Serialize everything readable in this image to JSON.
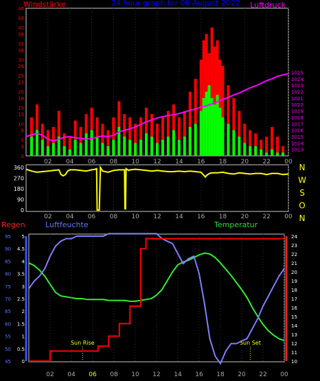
{
  "colors": {
    "wind_avg": "#00ff00",
    "wind_gust": "#ff0000",
    "pressure": "#ff00ff",
    "direction": "#ffff00",
    "humidity": "#8080ff",
    "temperature": "#33ee33",
    "rain": "#ff0000",
    "title": "#0000ff",
    "compass": "#ffff00",
    "humidity_label": "#5b7bff",
    "temp_label": "#33dd33",
    "rain_label": "#ff2020",
    "axis_tick": "#aaaaaa",
    "gauge_left": "#3355ff",
    "gauge_right": "#ff2020",
    "sun_marker": "#ffff00"
  },
  "chart_data": [
    {
      "type": "bar",
      "title": "24 hour graph for 06 August 2022",
      "xlabel": "",
      "ylabel": "Windstärke",
      "y2label": "Luftdruck",
      "x_ticks": [
        "02",
        "04",
        "06",
        "08",
        "10",
        "12",
        "14",
        "16",
        "18",
        "20",
        "22",
        "00"
      ],
      "ylim": [
        0,
        46
      ],
      "y_ticks": [
        0,
        3,
        5,
        8,
        10,
        13,
        15,
        18,
        20,
        23,
        25,
        28,
        30,
        33,
        35,
        38,
        40,
        43,
        46
      ],
      "y2lim": [
        1012,
        1035
      ],
      "y2_ticks": [
        1013,
        1014,
        1015,
        1016,
        1017,
        1018,
        1019,
        1020,
        1021,
        1022,
        1023,
        1024,
        1025
      ],
      "series": [
        {
          "name": "Windstärke",
          "kind": "bars",
          "x": [
            0.5,
            1,
            1.5,
            2,
            2.5,
            3,
            3.5,
            4,
            4.5,
            5,
            5.5,
            6,
            6.5,
            7,
            7.5,
            8,
            8.5,
            9,
            9.5,
            10,
            10.5,
            11,
            11.5,
            12,
            12.5,
            13,
            13.5,
            14,
            14.5,
            15,
            15.5,
            16,
            16.25,
            16.5,
            16.75,
            17,
            17.25,
            17.5,
            17.75,
            18,
            18.5,
            19,
            19.5,
            20,
            20.5,
            21,
            21.5,
            22,
            22.5,
            23,
            23.5
          ],
          "values": [
            6,
            8,
            5,
            3,
            4,
            6,
            3,
            2,
            5,
            4,
            7,
            8,
            6,
            4,
            3,
            5,
            9,
            6,
            5,
            4,
            5,
            7,
            6,
            4,
            5,
            6,
            8,
            5,
            6,
            9,
            10,
            14,
            18,
            20,
            22,
            18,
            16,
            19,
            15,
            12,
            10,
            8,
            6,
            4,
            3,
            3,
            2,
            1,
            2,
            1,
            1
          ]
        },
        {
          "name": "Böen",
          "kind": "bars",
          "x": [
            0.5,
            1,
            1.5,
            2,
            2.5,
            3,
            3.5,
            4,
            4.5,
            5,
            5.5,
            6,
            6.5,
            7,
            7.5,
            8,
            8.5,
            9,
            9.5,
            10,
            10.5,
            11,
            11.5,
            12,
            12.5,
            13,
            13.5,
            14,
            14.5,
            15,
            15.5,
            16,
            16.25,
            16.5,
            16.75,
            17,
            17.25,
            17.5,
            17.75,
            18,
            18.5,
            19,
            19.5,
            20,
            20.5,
            21,
            21.5,
            22,
            22.5,
            23,
            23.5
          ],
          "values": [
            12,
            16,
            10,
            8,
            9,
            14,
            7,
            6,
            11,
            9,
            13,
            15,
            12,
            10,
            8,
            12,
            17,
            13,
            12,
            10,
            12,
            15,
            13,
            10,
            12,
            14,
            16,
            12,
            14,
            20,
            24,
            30,
            36,
            38,
            32,
            40,
            34,
            36,
            30,
            28,
            22,
            18,
            14,
            10,
            8,
            7,
            5,
            6,
            9,
            6,
            3
          ]
        },
        {
          "name": "Luftdruck",
          "kind": "line",
          "x": [
            0,
            0.5,
            1,
            1.5,
            2,
            2.5,
            3,
            3.5,
            4,
            4.5,
            5,
            5.5,
            6,
            6.5,
            7,
            7.5,
            8,
            8.5,
            9,
            9.5,
            10,
            10.5,
            11,
            11.5,
            12,
            12.5,
            13,
            13.5,
            14,
            14.5,
            15,
            15.5,
            16,
            16.5,
            17,
            17.5,
            18,
            18.5,
            19,
            19.5,
            20,
            20.5,
            21,
            21.5,
            22,
            22.5,
            23,
            23.5,
            24
          ],
          "values": [
            1015.0,
            1015.3,
            1015.5,
            1015.2,
            1014.6,
            1014.3,
            1014.6,
            1014.9,
            1015.0,
            1014.8,
            1014.7,
            1014.6,
            1014.7,
            1014.9,
            1015.1,
            1015.0,
            1015.2,
            1015.7,
            1016.0,
            1016.2,
            1016.5,
            1016.9,
            1017.3,
            1017.6,
            1017.9,
            1018.1,
            1018.3,
            1018.4,
            1018.6,
            1018.8,
            1019.1,
            1019.3,
            1019.6,
            1019.8,
            1020.1,
            1020.4,
            1020.8,
            1021.1,
            1021.5,
            1021.8,
            1022.2,
            1022.6,
            1022.9,
            1023.3,
            1023.7,
            1024.0,
            1024.4,
            1024.6,
            1024.8
          ]
        }
      ]
    },
    {
      "type": "line",
      "title": "",
      "xlabel": "",
      "ylabel": "",
      "x_ticks": [
        "02",
        "04",
        "06",
        "08",
        "10",
        "12",
        "14",
        "16",
        "18",
        "20",
        "22",
        "00"
      ],
      "ylim": [
        0,
        360
      ],
      "y_ticks": [
        0,
        90,
        180,
        270,
        360
      ],
      "right_labels": [
        "N",
        "W",
        "S",
        "O",
        "N"
      ],
      "series": [
        {
          "name": "Windrichtung",
          "x": [
            0,
            0.5,
            1,
            1.5,
            2,
            2.5,
            3,
            3.2,
            3.4,
            3.6,
            3.8,
            4,
            4.5,
            5,
            5.5,
            6,
            6.3,
            6.45,
            6.5,
            6.6,
            6.7,
            6.8,
            7,
            7.5,
            8,
            8.5,
            9,
            9.05,
            9.1,
            9.15,
            9.3,
            9.4,
            9.5,
            10,
            10.5,
            11,
            11.5,
            12,
            12.5,
            13,
            13.5,
            14,
            14.5,
            15,
            15.5,
            16,
            16.2,
            16.4,
            16.6,
            16.8,
            17,
            17.5,
            18,
            18.5,
            19,
            19.5,
            20,
            20.5,
            21,
            21.5,
            22,
            22.5,
            23,
            23.5,
            24
          ],
          "values": [
            345,
            330,
            320,
            325,
            330,
            335,
            340,
            300,
            290,
            300,
            330,
            340,
            340,
            335,
            330,
            340,
            345,
            350,
            0,
            0,
            0,
            360,
            330,
            320,
            335,
            340,
            340,
            10,
            10,
            350,
            340,
            335,
            340,
            345,
            340,
            335,
            330,
            335,
            330,
            325,
            325,
            330,
            325,
            330,
            325,
            320,
            300,
            280,
            300,
            310,
            315,
            315,
            320,
            310,
            305,
            315,
            310,
            305,
            310,
            310,
            300,
            310,
            310,
            300,
            305
          ]
        }
      ]
    },
    {
      "type": "line",
      "title": "",
      "xlabel": "",
      "ylabel": "Regen",
      "y2label": "Temperatur",
      "axis_label_humidity": "Luftfeuchte",
      "x_ticks": [
        "02",
        "04",
        "06",
        "08",
        "10",
        "12",
        "14",
        "16",
        "18",
        "20",
        "22",
        "00"
      ],
      "x_ticks_highlight": [
        false,
        false,
        true,
        false,
        false,
        false,
        false,
        false,
        false,
        false,
        false,
        false
      ],
      "rain_ylim": [
        0,
        5
      ],
      "rain_ticks": [
        "0",
        "0.5",
        "1",
        "1.5",
        "2",
        "2.5",
        "3",
        "3.5",
        "4",
        "4.5",
        "5"
      ],
      "humidity_ylim": [
        45,
        95
      ],
      "humidity_ticks": [
        "45",
        "50",
        "55",
        "60",
        "65",
        "70",
        "75",
        "80",
        "85",
        "90",
        "95"
      ],
      "temp_ylim": [
        10,
        24
      ],
      "temp_ticks": [
        "10",
        "11",
        "12",
        "13",
        "14",
        "15",
        "16",
        "17",
        "18",
        "19",
        "20",
        "21",
        "22",
        "23",
        "24"
      ],
      "annotations": [
        {
          "text": "Sun Rise",
          "x": 5.05
        },
        {
          "text": "Sun Set",
          "x": 20.8
        }
      ],
      "series": [
        {
          "name": "Luftfeuchte",
          "x": [
            0,
            0.5,
            1,
            1.5,
            2,
            2.5,
            3,
            3.5,
            4,
            4.5,
            5,
            5.5,
            6,
            6.5,
            7,
            7.5,
            8,
            8.5,
            9,
            9.5,
            10,
            10.5,
            11,
            11.5,
            12,
            12.5,
            13,
            13.5,
            14,
            14.5,
            15,
            15.5,
            16,
            16.5,
            17,
            17.5,
            18,
            18.5,
            19,
            19.5,
            20,
            20.5,
            21,
            21.5,
            22,
            22.5,
            23,
            23.5,
            24
          ],
          "values": [
            74,
            77,
            79,
            82,
            87,
            91,
            93,
            94,
            94,
            95,
            95,
            95,
            95,
            95,
            95,
            96,
            96,
            96,
            96,
            96,
            96,
            96,
            96,
            96,
            96,
            94,
            93,
            92,
            88,
            84,
            86,
            87,
            80,
            68,
            54,
            47,
            44,
            49,
            52,
            52,
            53,
            54,
            58,
            62,
            67,
            71,
            75,
            79,
            82
          ]
        },
        {
          "name": "Temperatur",
          "x": [
            0,
            0.5,
            1,
            1.5,
            2,
            2.5,
            3,
            3.5,
            4,
            4.5,
            5,
            5.5,
            6,
            6.5,
            7,
            7.5,
            8,
            8.5,
            9,
            9.5,
            10,
            10.5,
            11,
            11.5,
            12,
            12.5,
            13,
            13.5,
            14,
            14.5,
            15,
            15.5,
            16,
            16.5,
            17,
            17.5,
            18,
            18.5,
            19,
            19.5,
            20,
            20.5,
            21,
            21.5,
            22,
            22.5,
            23,
            23.5,
            24
          ],
          "values": [
            21.0,
            20.7,
            20.2,
            19.5,
            18.6,
            17.7,
            17.3,
            17.2,
            17.1,
            17.0,
            17.0,
            16.9,
            16.9,
            16.9,
            16.9,
            16.8,
            16.8,
            16.8,
            16.8,
            16.7,
            16.7,
            16.8,
            16.9,
            17.0,
            17.4,
            18.0,
            19.0,
            20.0,
            20.8,
            21.1,
            21.3,
            21.6,
            21.9,
            22.1,
            22.0,
            21.6,
            21.0,
            20.3,
            19.6,
            18.8,
            18.0,
            17.1,
            16.0,
            15.0,
            14.1,
            13.4,
            12.9,
            12.5,
            12.3
          ]
        },
        {
          "name": "Regen",
          "x": [
            0,
            1,
            1.5,
            2,
            3,
            4,
            4.5,
            5,
            6,
            6.5,
            7,
            7.5,
            8,
            8.5,
            9,
            9.5,
            10,
            10.5,
            11,
            12,
            14,
            16,
            18,
            20,
            22,
            24
          ],
          "values": [
            0,
            0,
            0,
            0.4,
            0.4,
            0.4,
            0.4,
            0.4,
            0.4,
            0.6,
            0.6,
            1.0,
            1.0,
            1.5,
            1.5,
            2.2,
            2.2,
            4.5,
            4.9,
            4.9,
            4.9,
            4.9,
            4.9,
            4.9,
            4.9,
            4.9
          ]
        }
      ]
    }
  ]
}
